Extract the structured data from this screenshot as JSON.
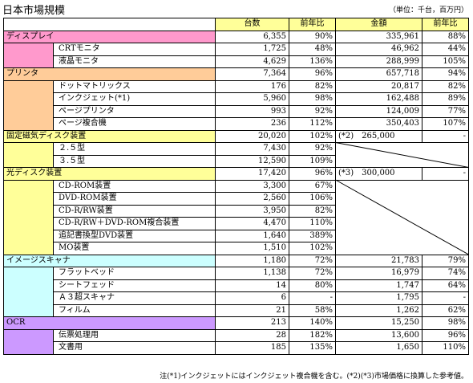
{
  "title": "日本市場規模",
  "unit_note": "（単位：千台，百万円）",
  "headers": {
    "units": "台数",
    "units_yoy": "前年比",
    "amount": "金額",
    "amount_yoy": "前年比"
  },
  "categories": [
    {
      "name": "ディスプレイ",
      "color": "#ff99cc",
      "total": {
        "units": "6,355",
        "units_yoy": "90%",
        "amount": "335,961",
        "amount_yoy": "88%"
      },
      "items": [
        {
          "name": "CRTモニタ",
          "units": "1,725",
          "units_yoy": "48%",
          "amount": "46,962",
          "amount_yoy": "44%"
        },
        {
          "name": "液晶モニタ",
          "units": "4,629",
          "units_yoy": "136%",
          "amount": "288,999",
          "amount_yoy": "105%"
        }
      ]
    },
    {
      "name": "プリンタ",
      "color": "#ffcc99",
      "total": {
        "units": "7,364",
        "units_yoy": "96%",
        "amount": "657,718",
        "amount_yoy": "94%"
      },
      "items": [
        {
          "name": "ドットマトリックス",
          "units": "176",
          "units_yoy": "82%",
          "amount": "20,817",
          "amount_yoy": "82%"
        },
        {
          "name": "インクジェット(*1)",
          "units": "5,960",
          "units_yoy": "98%",
          "amount": "162,488",
          "amount_yoy": "89%"
        },
        {
          "name": "ページプリンタ",
          "units": "993",
          "units_yoy": "92%",
          "amount": "124,009",
          "amount_yoy": "77%"
        },
        {
          "name": "ページ複合機",
          "units": "236",
          "units_yoy": "112%",
          "amount": "350,403",
          "amount_yoy": "107%"
        }
      ]
    },
    {
      "name": "固定磁気ディスク装置",
      "color": "#ffff99",
      "total": {
        "units": "20,020",
        "units_yoy": "102%",
        "amount_note": "(*2)",
        "amount": "265,000",
        "amount_yoy": "-"
      },
      "items": [
        {
          "name": "２.５型",
          "units": "7,430",
          "units_yoy": "92%"
        },
        {
          "name": "３.５型",
          "units": "12,590",
          "units_yoy": "109%"
        }
      ]
    },
    {
      "name": "光ディスク装置",
      "color": "#ffff99",
      "total": {
        "units": "17,420",
        "units_yoy": "96%",
        "amount_note": "(*3)",
        "amount": "300,000",
        "amount_yoy": "-"
      },
      "items": [
        {
          "name": "CD-ROM装置",
          "units": "3,300",
          "units_yoy": "67%"
        },
        {
          "name": "DVD-ROM装置",
          "units": "2,560",
          "units_yoy": "106%"
        },
        {
          "name": "CD-R/RW装置",
          "units": "3,950",
          "units_yoy": "82%"
        },
        {
          "name": "CD-R/RW＋DVD-ROM複合装置",
          "units": "4,470",
          "units_yoy": "110%"
        },
        {
          "name": "追記書換型DVD装置",
          "units": "1,640",
          "units_yoy": "389%"
        },
        {
          "name": "MO装置",
          "units": "1,510",
          "units_yoy": "102%"
        }
      ]
    },
    {
      "name": "イメージスキャナ",
      "color": "#ccffff",
      "total": {
        "units": "1,180",
        "units_yoy": "72%",
        "amount": "21,783",
        "amount_yoy": "79%"
      },
      "items": [
        {
          "name": "フラットベッド",
          "units": "1,138",
          "units_yoy": "72%",
          "amount": "16,979",
          "amount_yoy": "74%"
        },
        {
          "name": "シートフェッド",
          "units": "14",
          "units_yoy": "80%",
          "amount": "1,747",
          "amount_yoy": "64%"
        },
        {
          "name": "Ａ３超スキャナ",
          "units": "6",
          "units_yoy": "-",
          "amount": "1,795",
          "amount_yoy": "-"
        },
        {
          "name": "フィルム",
          "units": "21",
          "units_yoy": "58%",
          "amount": "1,262",
          "amount_yoy": "62%"
        }
      ]
    },
    {
      "name": "OCR",
      "color": "#cc99ff",
      "total": {
        "units": "213",
        "units_yoy": "140%",
        "amount": "15,250",
        "amount_yoy": "98%"
      },
      "items": [
        {
          "name": "伝票処理用",
          "units": "28",
          "units_yoy": "182%",
          "amount": "13,600",
          "amount_yoy": "96%"
        },
        {
          "name": "文書用",
          "units": "185",
          "units_yoy": "135%",
          "amount": "1,650",
          "amount_yoy": "110%"
        }
      ]
    }
  ],
  "footnote": "注(*1)インクジェットにはインクジェット複合機を含む。(*2)(*3)市場価格に換算した参考値。"
}
